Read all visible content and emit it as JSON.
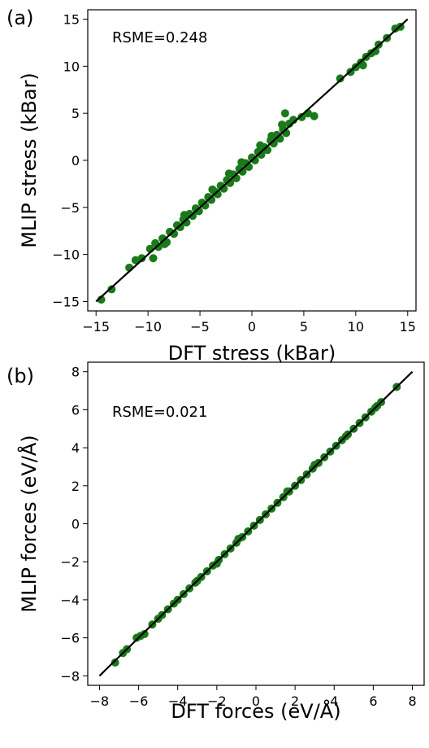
{
  "chart_data": [
    {
      "type": "scatter",
      "panel_label": "(a)",
      "xlabel": "DFT stress (kBar)",
      "ylabel": "MLIP stress (kBar)",
      "annotation": "RSME=0.248",
      "xlim": [
        -15.8,
        15.8
      ],
      "ylim": [
        -16,
        16
      ],
      "xticks": [
        -15,
        -10,
        -5,
        0,
        5,
        10,
        15
      ],
      "yticks": [
        -15,
        -10,
        -5,
        0,
        5,
        10,
        15
      ],
      "xtick_labels": [
        "−15",
        "−10",
        "−5",
        "0",
        "5",
        "10",
        "15"
      ],
      "ytick_labels": [
        "−15",
        "−10",
        "−5",
        "0",
        "5",
        "10",
        "15"
      ],
      "point_color": "#1a7a1a",
      "line_color": "#000000",
      "fit_line": {
        "x": [
          -15,
          15
        ],
        "y": [
          -15,
          15
        ]
      },
      "series": [
        {
          "points": [
            [
              -14.5,
              -14.8
            ],
            [
              -13.5,
              -13.7
            ],
            [
              -11.8,
              -11.4
            ],
            [
              -11.2,
              -10.6
            ],
            [
              -10.6,
              -10.4
            ],
            [
              -9.8,
              -9.4
            ],
            [
              -9.3,
              -8.8
            ],
            [
              -9.0,
              -9.2
            ],
            [
              -8.6,
              -8.3
            ],
            [
              -8.2,
              -8.7
            ],
            [
              -7.9,
              -7.6
            ],
            [
              -7.5,
              -7.8
            ],
            [
              -7.2,
              -6.9
            ],
            [
              -6.9,
              -7.1
            ],
            [
              -6.6,
              -6.3
            ],
            [
              -6.3,
              -6.6
            ],
            [
              -6.0,
              -5.7
            ],
            [
              -5.7,
              -5.9
            ],
            [
              -5.4,
              -5.1
            ],
            [
              -5.1,
              -5.4
            ],
            [
              -4.8,
              -4.5
            ],
            [
              -4.5,
              -4.8
            ],
            [
              -4.2,
              -3.9
            ],
            [
              -3.9,
              -4.2
            ],
            [
              -3.6,
              -3.3
            ],
            [
              -3.3,
              -3.6
            ],
            [
              -3.0,
              -2.7
            ],
            [
              -2.7,
              -3.0
            ],
            [
              -2.4,
              -2.1
            ],
            [
              -2.1,
              -2.4
            ],
            [
              -1.8,
              -1.5
            ],
            [
              -1.5,
              -1.9
            ],
            [
              -1.2,
              -0.9
            ],
            [
              -0.9,
              -1.2
            ],
            [
              -0.6,
              -0.3
            ],
            [
              -0.3,
              -0.7
            ],
            [
              0.0,
              0.3
            ],
            [
              0.3,
              0.0
            ],
            [
              0.6,
              0.9
            ],
            [
              0.9,
              0.6
            ],
            [
              1.2,
              1.4
            ],
            [
              1.5,
              1.1
            ],
            [
              1.8,
              2.1
            ],
            [
              2.1,
              1.8
            ],
            [
              2.4,
              2.7
            ],
            [
              2.7,
              2.3
            ],
            [
              3.0,
              3.3
            ],
            [
              3.3,
              2.9
            ],
            [
              3.6,
              3.9
            ],
            [
              4.0,
              4.3
            ],
            [
              3.2,
              5.0
            ],
            [
              4.8,
              4.6
            ],
            [
              5.4,
              5.0
            ],
            [
              6.0,
              4.7
            ],
            [
              2.9,
              3.8
            ],
            [
              -2.2,
              -1.4
            ],
            [
              -3.8,
              -3.1
            ],
            [
              -6.5,
              -5.8
            ],
            [
              -9.5,
              -10.4
            ],
            [
              -8.4,
              -8.9
            ],
            [
              9.5,
              9.4
            ],
            [
              10.0,
              9.9
            ],
            [
              10.5,
              10.4
            ],
            [
              11.0,
              11.0
            ],
            [
              11.5,
              11.4
            ],
            [
              12.2,
              12.3
            ],
            [
              13.0,
              13.0
            ],
            [
              13.8,
              14.0
            ],
            [
              14.3,
              14.2
            ],
            [
              8.5,
              8.7
            ],
            [
              10.7,
              10.1
            ],
            [
              11.9,
              11.6
            ],
            [
              -1.0,
              -0.2
            ],
            [
              0.8,
              1.6
            ],
            [
              1.9,
              2.6
            ]
          ]
        }
      ]
    },
    {
      "type": "scatter",
      "panel_label": "(b)",
      "xlabel": "DFT forces (eV/Å)",
      "ylabel": "MLIP forces (eV/Å)",
      "annotation": "RSME=0.021",
      "xlim": [
        -8.6,
        8.6
      ],
      "ylim": [
        -8.5,
        8.5
      ],
      "xticks": [
        -8,
        -6,
        -4,
        -2,
        0,
        2,
        4,
        6,
        8
      ],
      "yticks": [
        -8,
        -6,
        -4,
        -2,
        0,
        2,
        4,
        6,
        8
      ],
      "xtick_labels": [
        "−8",
        "−6",
        "−4",
        "−2",
        "0",
        "2",
        "4",
        "6",
        "8"
      ],
      "ytick_labels": [
        "−8",
        "−6",
        "−4",
        "−2",
        "0",
        "2",
        "4",
        "6",
        "8"
      ],
      "point_color": "#1a7a1a",
      "line_color": "#000000",
      "fit_line": {
        "x": [
          -8,
          8
        ],
        "y": [
          -8,
          8
        ]
      },
      "series": [
        {
          "points": [
            [
              -7.2,
              -7.3
            ],
            [
              -6.8,
              -6.8
            ],
            [
              -6.6,
              -6.6
            ],
            [
              -5.9,
              -5.9
            ],
            [
              -5.7,
              -5.8
            ],
            [
              -5.0,
              -5.0
            ],
            [
              -4.8,
              -4.8
            ],
            [
              -4.5,
              -4.5
            ],
            [
              -4.2,
              -4.2
            ],
            [
              -4.0,
              -4.0
            ],
            [
              -3.7,
              -3.7
            ],
            [
              -3.4,
              -3.4
            ],
            [
              -3.1,
              -3.1
            ],
            [
              -2.8,
              -2.8
            ],
            [
              -2.5,
              -2.5
            ],
            [
              -2.2,
              -2.2
            ],
            [
              -1.9,
              -1.9
            ],
            [
              -1.6,
              -1.6
            ],
            [
              -1.3,
              -1.3
            ],
            [
              -1.0,
              -1.0
            ],
            [
              -0.7,
              -0.7
            ],
            [
              -0.4,
              -0.4
            ],
            [
              -0.1,
              -0.1
            ],
            [
              0.2,
              0.2
            ],
            [
              0.5,
              0.5
            ],
            [
              0.8,
              0.8
            ],
            [
              1.1,
              1.1
            ],
            [
              1.4,
              1.4
            ],
            [
              1.7,
              1.7
            ],
            [
              2.0,
              2.0
            ],
            [
              2.3,
              2.3
            ],
            [
              2.6,
              2.6
            ],
            [
              2.9,
              2.9
            ],
            [
              3.2,
              3.2
            ],
            [
              3.5,
              3.5
            ],
            [
              3.8,
              3.8
            ],
            [
              4.1,
              4.1
            ],
            [
              4.4,
              4.4
            ],
            [
              4.7,
              4.7
            ],
            [
              5.0,
              5.0
            ],
            [
              5.3,
              5.3
            ],
            [
              5.6,
              5.6
            ],
            [
              5.9,
              5.9
            ],
            [
              6.1,
              6.1
            ],
            [
              6.4,
              6.4
            ],
            [
              7.2,
              7.2
            ],
            [
              -5.3,
              -5.3
            ],
            [
              -3.0,
              -3.0
            ],
            [
              -0.9,
              -0.8
            ],
            [
              1.6,
              1.7
            ],
            [
              3.0,
              3.1
            ],
            [
              4.6,
              4.6
            ],
            [
              -6.1,
              -6.0
            ],
            [
              6.2,
              6.2
            ],
            [
              -2.0,
              -2.1
            ]
          ]
        }
      ]
    }
  ]
}
